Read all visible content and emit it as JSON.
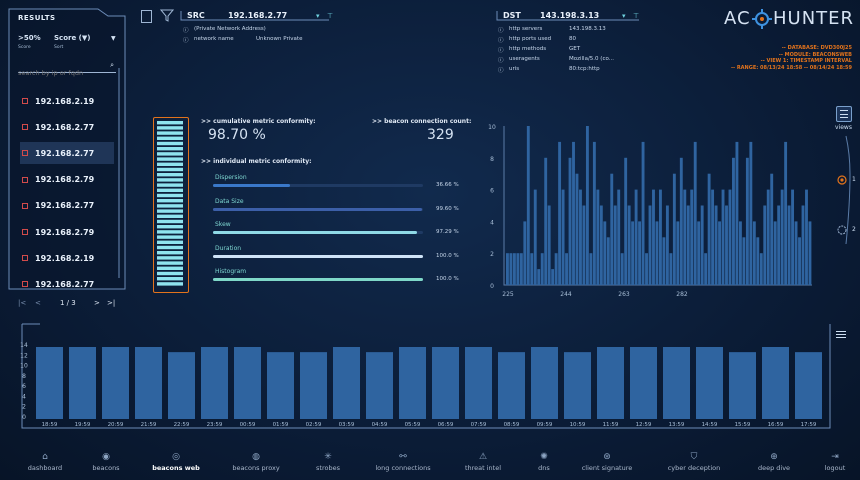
{
  "results": {
    "title": "RESULTS",
    "filter_value": ">50%",
    "filter_caption": "Score",
    "sort_value": "Score (▼)",
    "sort_caption": "Sort",
    "search_placeholder": "search by ip or fqdn",
    "items": [
      "192.168.2.19",
      "192.168.2.77",
      "192.168.2.77",
      "192.168.2.79",
      "192.168.2.77",
      "192.168.2.79",
      "192.168.2.19",
      "192.168.2.77"
    ],
    "selected_index": 2,
    "pagination": {
      "first": "|<",
      "prev": "<",
      "page": "1 / 3",
      "next": ">",
      "last": ">|"
    }
  },
  "src": {
    "label": "SRC",
    "ip": "192.168.2.77",
    "note": "(Private Network Address)",
    "rows": [
      {
        "key": "network name",
        "value": "Unknown Private"
      }
    ]
  },
  "dst": {
    "label": "DST",
    "ip": "143.198.3.13",
    "rows": [
      {
        "key": "http servers",
        "value": "143.198.3.13"
      },
      {
        "key": "http ports used",
        "value": "80"
      },
      {
        "key": "http methods",
        "value": "GET"
      },
      {
        "key": "useragents",
        "value": "Mozilla/5.0 (co..."
      },
      {
        "key": "uris",
        "value": "80:tcp:http"
      }
    ]
  },
  "brand": {
    "logo_left": "AC",
    "logo_right": "HUNTER",
    "lines": [
      "-- DATABASE: DVD300J25",
      "-- MODULE: BEACONSWEB",
      "-- VIEW 1: TIMESTAMP INTERVAL",
      "-- RANGE: 08/13/24 18:58 -- 08/14/24 18:59"
    ]
  },
  "metrics": {
    "cumulative_label": ">> cumulative metric conformity:",
    "cumulative_value": "98.70 %",
    "count_label": ">> beacon connection count:",
    "count_value": "329",
    "individual_label": ">> individual metric conformity:",
    "items": [
      {
        "name": "Dispersion",
        "value": "36.66 %",
        "fraction": 0.3666,
        "color": "#3a78c9"
      },
      {
        "name": "Data Size",
        "value": "99.60 %",
        "fraction": 0.996,
        "color": "#3c5fa8"
      },
      {
        "name": "Skew",
        "value": "97.29 %",
        "fraction": 0.9729,
        "color": "#8fd9e6"
      },
      {
        "name": "Duration",
        "value": "100.0 %",
        "fraction": 1.0,
        "color": "#cfe3f7"
      },
      {
        "name": "Histogram",
        "value": "100.0 %",
        "fraction": 1.0,
        "color": "#7fd8c8"
      }
    ]
  },
  "side": {
    "views_label": "views",
    "one": "1",
    "two": "2"
  },
  "chart_data": [
    {
      "type": "bar",
      "ylim": [
        0,
        10
      ],
      "yticks": [
        "10",
        "8",
        "6",
        "4",
        "2",
        "0"
      ],
      "xticks": [
        "225",
        "244",
        "263",
        "282"
      ],
      "values": [
        2,
        2,
        2,
        2,
        2,
        4,
        10,
        2,
        6,
        1,
        2,
        8,
        5,
        1,
        2,
        9,
        6,
        2,
        8,
        9,
        7,
        6,
        5,
        10,
        2,
        9,
        6,
        5,
        4,
        3,
        7,
        5,
        6,
        2,
        8,
        5,
        4,
        6,
        4,
        9,
        2,
        5,
        6,
        4,
        6,
        3,
        5,
        2,
        7,
        4,
        8,
        6,
        5,
        6,
        9,
        4,
        5,
        2,
        7,
        6,
        5,
        4,
        6,
        5,
        6,
        8,
        9,
        4,
        3,
        8,
        9,
        4,
        3,
        2,
        5,
        6,
        7,
        4,
        5,
        6,
        9,
        5,
        6,
        4,
        3,
        5,
        6,
        4
      ]
    },
    {
      "type": "bar",
      "ylim": [
        0,
        14
      ],
      "yticks": [
        "14",
        "12",
        "10",
        "8",
        "6",
        "4",
        "2",
        "0"
      ],
      "categories": [
        "18:59",
        "19:59",
        "20:59",
        "21:59",
        "22:59",
        "23:59",
        "00:59",
        "01:59",
        "02:59",
        "03:59",
        "04:59",
        "05:59",
        "06:59",
        "07:59",
        "08:59",
        "09:59",
        "10:59",
        "11:59",
        "12:59",
        "13:59",
        "14:59",
        "15:59",
        "16:59",
        "17:59"
      ],
      "values": [
        14,
        14,
        14,
        14,
        13,
        14,
        14,
        13,
        13,
        14,
        13,
        14,
        14,
        14,
        13,
        14,
        13,
        14,
        14,
        14,
        14,
        13,
        14,
        13
      ]
    }
  ],
  "nav": [
    {
      "label": "dashboard",
      "icon": "⌂"
    },
    {
      "label": "beacons",
      "icon": "◉"
    },
    {
      "label": "beacons web",
      "icon": "◎"
    },
    {
      "label": "beacons proxy",
      "icon": "◍"
    },
    {
      "label": "strobes",
      "icon": "✳"
    },
    {
      "label": "long connections",
      "icon": "⚯"
    },
    {
      "label": "threat intel",
      "icon": "⚠"
    },
    {
      "label": "dns",
      "icon": "✺"
    },
    {
      "label": "client signature",
      "icon": "⊛"
    },
    {
      "label": "cyber deception",
      "icon": "⛉"
    },
    {
      "label": "deep dive",
      "icon": "⊕"
    },
    {
      "label": "logout",
      "icon": "⇥"
    }
  ],
  "active_nav": 2,
  "colors": {
    "accent": "#e2731c",
    "bar": "#2f64a0",
    "cyan": "#8fe3ef"
  }
}
